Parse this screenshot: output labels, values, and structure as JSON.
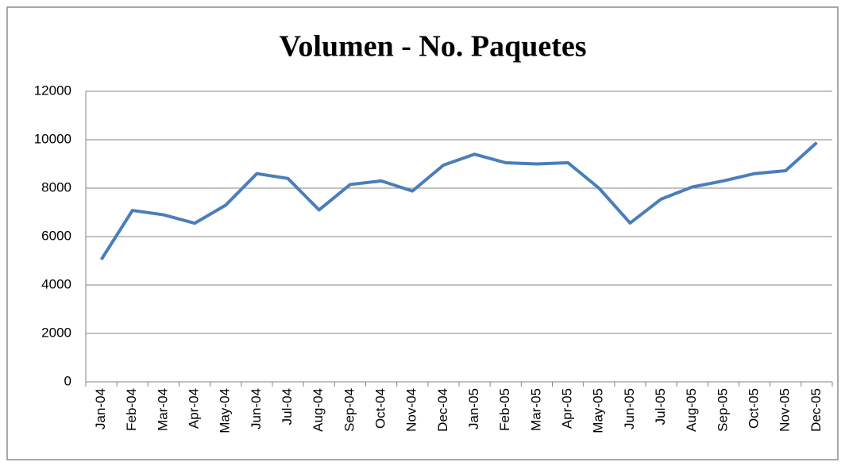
{
  "chart_data": {
    "type": "line",
    "title": "Volumen - No. Paquetes",
    "categories": [
      "Jan-04",
      "Feb-04",
      "Mar-04",
      "Apr-04",
      "May-04",
      "Jun-04",
      "Jul-04",
      "Aug-04",
      "Sep-04",
      "Oct-04",
      "Nov-04",
      "Dec-04",
      "Jan-05",
      "Feb-05",
      "Mar-05",
      "Apr-05",
      "May-05",
      "Jun-05",
      "Jul-05",
      "Aug-05",
      "Sep-05",
      "Oct-05",
      "Nov-05",
      "Dec-05"
    ],
    "series": [
      {
        "color": "#4a7ebb",
        "values": [
          5050,
          7080,
          6900,
          6550,
          7300,
          8600,
          8400,
          7100,
          8150,
          8300,
          7880,
          8950,
          9400,
          9050,
          9000,
          9050,
          8000,
          6560,
          7550,
          8050,
          8300,
          8600,
          8720,
          9880
        ]
      }
    ],
    "ylim": [
      0,
      12000
    ],
    "yticks": [
      0,
      2000,
      4000,
      6000,
      8000,
      10000,
      12000
    ],
    "grid": true
  }
}
